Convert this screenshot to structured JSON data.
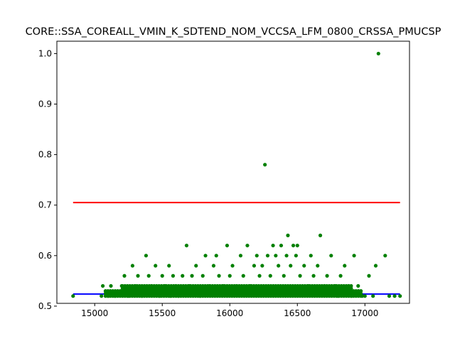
{
  "chart_data": {
    "type": "scatter",
    "title": "CORE::SSA_COREALL_VMIN_K_SDTEND_NOM_VCCSA_LFM_0800_CRSSA_PMUCSP",
    "xlabel": "",
    "ylabel": "",
    "xlim": [
      14720,
      17330
    ],
    "ylim": [
      0.5055,
      1.0245
    ],
    "x_ticks": [
      "15000",
      "15500",
      "16000",
      "16500",
      "17000"
    ],
    "y_ticks": [
      "0.5",
      "0.6",
      "0.7",
      "0.8",
      "0.9",
      "1.0"
    ],
    "grid": false,
    "legend": "none",
    "colors": {
      "points": "#008000",
      "upper_line": "#ff0000",
      "lower_line": "#0000ff"
    },
    "reference_lines": [
      {
        "color": "red",
        "y": 0.705,
        "x": [
          14840,
          17260
        ]
      },
      {
        "color": "blue",
        "y": 0.524,
        "x": [
          14840,
          17260
        ]
      }
    ],
    "series": [
      {
        "points": [
          [
            14840,
            0.52
          ],
          [
            15050,
            0.52
          ],
          [
            15060,
            0.54
          ],
          [
            15100,
            0.52
          ],
          [
            15120,
            0.54
          ],
          [
            15150,
            0.52
          ],
          [
            15200,
            0.54
          ],
          [
            15220,
            0.56
          ],
          [
            15250,
            0.52
          ],
          [
            15280,
            0.58
          ],
          [
            15300,
            0.54
          ],
          [
            15320,
            0.56
          ],
          [
            15350,
            0.52
          ],
          [
            15380,
            0.6
          ],
          [
            15400,
            0.56
          ],
          [
            15420,
            0.54
          ],
          [
            15450,
            0.58
          ],
          [
            15480,
            0.52
          ],
          [
            15500,
            0.56
          ],
          [
            15520,
            0.54
          ],
          [
            15550,
            0.58
          ],
          [
            15560,
            0.52
          ],
          [
            15580,
            0.56
          ],
          [
            15600,
            0.54
          ],
          [
            15620,
            0.52
          ],
          [
            15650,
            0.56
          ],
          [
            15680,
            0.62
          ],
          [
            15700,
            0.54
          ],
          [
            15720,
            0.56
          ],
          [
            15750,
            0.58
          ],
          [
            15780,
            0.52
          ],
          [
            15800,
            0.56
          ],
          [
            15820,
            0.6
          ],
          [
            15850,
            0.54
          ],
          [
            15880,
            0.58
          ],
          [
            15900,
            0.6
          ],
          [
            15920,
            0.56
          ],
          [
            15950,
            0.54
          ],
          [
            15980,
            0.62
          ],
          [
            16000,
            0.56
          ],
          [
            16020,
            0.58
          ],
          [
            16050,
            0.54
          ],
          [
            16080,
            0.6
          ],
          [
            16100,
            0.56
          ],
          [
            16130,
            0.62
          ],
          [
            16150,
            0.54
          ],
          [
            16180,
            0.58
          ],
          [
            16200,
            0.6
          ],
          [
            16220,
            0.56
          ],
          [
            16240,
            0.58
          ],
          [
            16260,
            0.78
          ],
          [
            16280,
            0.6
          ],
          [
            16300,
            0.56
          ],
          [
            16320,
            0.62
          ],
          [
            16340,
            0.6
          ],
          [
            16360,
            0.58
          ],
          [
            16380,
            0.62
          ],
          [
            16400,
            0.56
          ],
          [
            16420,
            0.6
          ],
          [
            16430,
            0.64
          ],
          [
            16450,
            0.58
          ],
          [
            16470,
            0.62
          ],
          [
            16490,
            0.6
          ],
          [
            16500,
            0.62
          ],
          [
            16520,
            0.56
          ],
          [
            16550,
            0.58
          ],
          [
            16580,
            0.54
          ],
          [
            16600,
            0.6
          ],
          [
            16620,
            0.56
          ],
          [
            16650,
            0.58
          ],
          [
            16670,
            0.64
          ],
          [
            16700,
            0.54
          ],
          [
            16720,
            0.56
          ],
          [
            16750,
            0.6
          ],
          [
            16780,
            0.54
          ],
          [
            16800,
            0.52
          ],
          [
            16820,
            0.56
          ],
          [
            16850,
            0.58
          ],
          [
            16880,
            0.54
          ],
          [
            16900,
            0.52
          ],
          [
            16920,
            0.6
          ],
          [
            16950,
            0.54
          ],
          [
            16980,
            0.52
          ],
          [
            17000,
            0.52
          ],
          [
            17030,
            0.56
          ],
          [
            17060,
            0.52
          ],
          [
            17080,
            0.58
          ],
          [
            17100,
            1.0
          ],
          [
            17150,
            0.6
          ],
          [
            17180,
            0.52
          ],
          [
            17220,
            0.52
          ],
          [
            17260,
            0.52
          ]
        ]
      }
    ]
  }
}
